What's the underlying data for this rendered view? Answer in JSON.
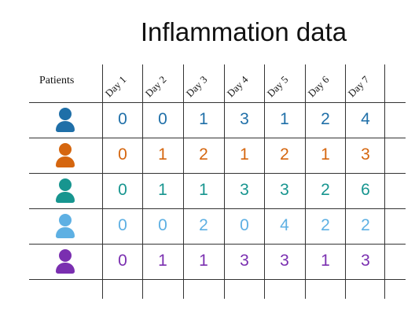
{
  "title": "Inflammation data",
  "patients_label": "Patients",
  "days": [
    "Day 1",
    "Day 2",
    "Day 3",
    "Day 4",
    "Day 5",
    "Day 6",
    "Day 7"
  ],
  "patients": [
    {
      "color": "#1f6fa8",
      "values": [
        0,
        0,
        1,
        3,
        1,
        2,
        4
      ]
    },
    {
      "color": "#d5660f",
      "values": [
        0,
        1,
        2,
        1,
        2,
        1,
        3
      ]
    },
    {
      "color": "#17958f",
      "values": [
        0,
        1,
        1,
        3,
        3,
        2,
        6
      ]
    },
    {
      "color": "#5eb0e3",
      "values": [
        0,
        0,
        2,
        0,
        4,
        2,
        2
      ]
    },
    {
      "color": "#7a2fb0",
      "values": [
        0,
        1,
        1,
        3,
        3,
        1,
        3
      ]
    }
  ],
  "icon_name": "person-icon",
  "grid_color": "#333333"
}
